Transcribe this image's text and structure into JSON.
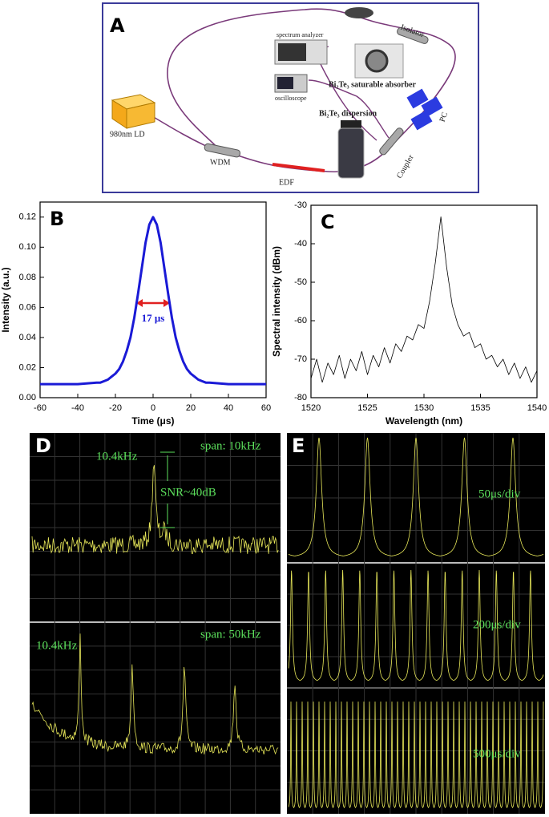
{
  "diagram": {
    "label": "A",
    "ld": "980nm LD",
    "wdm": "WDM",
    "edf": "EDF",
    "coupler": "Coupler",
    "pc": "PC",
    "isolator": "Isolator",
    "spectrum_analyzer": "spectrum analyzer",
    "oscilloscope": "oscilloscope",
    "absorber": "Bi₂Te₃ saturable absorber",
    "dispersion": "Bi₂Te₃ dispersion"
  },
  "chart_data": [
    {
      "type": "line",
      "label": "B",
      "xlabel": "Time (μs)",
      "ylabel": "Intensity (a.u.)",
      "annotation": "17 μs",
      "color": "#1a1ad6",
      "x": [
        -60,
        -50,
        -40,
        -30,
        -28,
        -26,
        -24,
        -22,
        -20,
        -18,
        -16,
        -14,
        -12,
        -10,
        -8,
        -6,
        -4,
        -2,
        0,
        2,
        4,
        6,
        8,
        10,
        12,
        14,
        16,
        18,
        20,
        22,
        24,
        26,
        28,
        30,
        40,
        50,
        60
      ],
      "values": [
        0.009,
        0.009,
        0.009,
        0.01,
        0.01,
        0.011,
        0.012,
        0.014,
        0.016,
        0.019,
        0.024,
        0.031,
        0.04,
        0.053,
        0.069,
        0.086,
        0.103,
        0.115,
        0.12,
        0.115,
        0.103,
        0.086,
        0.069,
        0.053,
        0.04,
        0.031,
        0.024,
        0.019,
        0.016,
        0.014,
        0.012,
        0.011,
        0.01,
        0.01,
        0.009,
        0.009,
        0.009
      ],
      "xlim": [
        -60,
        60
      ],
      "xticks": [
        -60,
        -40,
        -20,
        0,
        20,
        40,
        60
      ],
      "ylim": [
        0,
        0.13
      ],
      "yticks": [
        {
          "value": 0,
          "label": "0.00"
        },
        0.02,
        0.04,
        0.06,
        0.08,
        {
          "value": 0.1,
          "label": "0.10"
        },
        0.12
      ]
    },
    {
      "type": "line",
      "label": "C",
      "xlabel": "Wavelength (nm)",
      "ylabel": "Spectral intensity (dBm)",
      "color": "#000000",
      "x": [
        1520,
        1520.5,
        1521,
        1521.5,
        1522,
        1522.5,
        1523,
        1523.5,
        1524,
        1524.5,
        1525,
        1525.5,
        1526,
        1526.5,
        1527,
        1527.5,
        1528,
        1528.5,
        1529,
        1529.5,
        1530,
        1530.5,
        1531,
        1531.5,
        1532,
        1532.5,
        1533,
        1533.5,
        1534,
        1534.5,
        1535,
        1535.5,
        1536,
        1536.5,
        1537,
        1537.5,
        1538,
        1538.5,
        1539,
        1539.5,
        1540
      ],
      "values": [
        -75,
        -70,
        -76,
        -71,
        -74,
        -69,
        -75,
        -70,
        -73,
        -68,
        -74,
        -69,
        -72,
        -67,
        -71,
        -66,
        -68,
        -64,
        -65,
        -61,
        -62,
        -55,
        -45,
        -33,
        -46,
        -56,
        -61,
        -64,
        -63,
        -67,
        -66,
        -70,
        -69,
        -72,
        -70,
        -74,
        -71,
        -75,
        -72,
        -76,
        -73
      ],
      "xlim": [
        1520,
        1540
      ],
      "xticks": [
        1520,
        1525,
        1530,
        1535,
        1540
      ],
      "ylim": [
        -80,
        -30
      ],
      "yticks": [
        -80,
        -70,
        -60,
        -50,
        -40,
        -30
      ]
    }
  ],
  "scope_panels": [
    {
      "label": "D",
      "top_peak": "10.4kHz",
      "top_span": "span: 10kHz",
      "snr": "SNR~40dB",
      "bottom_peak": "10.4kHz",
      "bottom_span": "span: 50kHz"
    },
    {
      "label": "E",
      "top": "50μs/div",
      "middle": "200μs/div",
      "bottom": "500μs/div"
    }
  ]
}
